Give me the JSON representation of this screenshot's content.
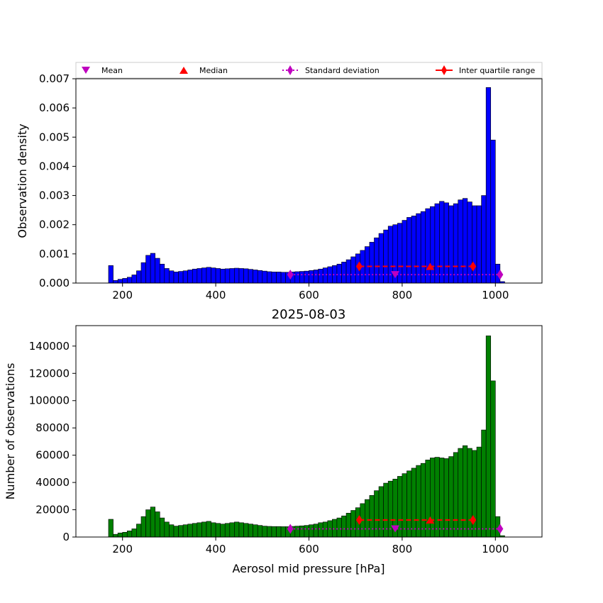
{
  "chart_data": [
    {
      "type": "bar",
      "xlabel": "",
      "ylabel": "Observation density",
      "xlim": [
        100,
        1100
      ],
      "ylim": [
        0,
        0.007
      ],
      "xticks": [
        200,
        400,
        600,
        800,
        1000
      ],
      "yticks": [
        "0.000",
        "0.001",
        "0.002",
        "0.003",
        "0.004",
        "0.005",
        "0.006",
        "0.007"
      ],
      "bar_color": "#0000ff",
      "bin_start": 170,
      "bin_width": 10,
      "values": [
        0.0006,
        9e-05,
        0.00013,
        0.00016,
        0.0002,
        0.00028,
        0.00042,
        0.0007,
        0.00095,
        0.00102,
        0.00085,
        0.00065,
        0.0005,
        0.00042,
        0.00038,
        0.0004,
        0.00042,
        0.00045,
        0.00048,
        0.0005,
        0.00052,
        0.00054,
        0.00052,
        0.0005,
        0.00048,
        0.00049,
        0.0005,
        0.00051,
        0.0005,
        0.00049,
        0.00047,
        0.00045,
        0.00043,
        0.00041,
        0.00039,
        0.00038,
        0.00038,
        0.00037,
        0.00037,
        0.00038,
        0.00039,
        0.0004,
        0.00041,
        0.00043,
        0.00045,
        0.00048,
        0.00052,
        0.00056,
        0.0006,
        0.00065,
        0.00072,
        0.0008,
        0.0009,
        0.001,
        0.00112,
        0.00125,
        0.0014,
        0.00155,
        0.0017,
        0.00182,
        0.00195,
        0.002,
        0.00205,
        0.00215,
        0.00225,
        0.0023,
        0.00238,
        0.00245,
        0.00255,
        0.00262,
        0.00272,
        0.0028,
        0.00275,
        0.00265,
        0.00272,
        0.00285,
        0.0029,
        0.00278,
        0.00265,
        0.00265,
        0.003,
        0.0067,
        0.0049,
        0.00065,
        5e-05
      ],
      "stats": {
        "mean": 785,
        "median": 860,
        "std_range": [
          560,
          1010
        ],
        "iqr_range": [
          708,
          952
        ]
      },
      "stats_y": {
        "mean": 0.00029,
        "median": 0.00057,
        "std": 0.00029,
        "iqr": 0.00057
      }
    },
    {
      "type": "bar",
      "title": "2025-08-03",
      "xlabel": "Aerosol mid pressure [hPa]",
      "ylabel": "Number of observations",
      "xlim": [
        100,
        1100
      ],
      "ylim": [
        0,
        155000
      ],
      "xticks": [
        200,
        400,
        600,
        800,
        1000
      ],
      "yticks": [
        "0",
        "20000",
        "40000",
        "60000",
        "80000",
        "100000",
        "120000",
        "140000"
      ],
      "bar_color": "#008000",
      "bin_start": 170,
      "bin_width": 10,
      "values": [
        13000,
        2000,
        3000,
        3500,
        4500,
        6000,
        9500,
        15000,
        20000,
        22000,
        18500,
        14000,
        11000,
        9000,
        8000,
        8500,
        9000,
        9500,
        10000,
        10500,
        11000,
        11500,
        10500,
        10000,
        9500,
        10000,
        10500,
        11000,
        10500,
        10000,
        9500,
        9000,
        8500,
        8000,
        7800,
        7700,
        7700,
        7600,
        7600,
        7800,
        8000,
        8200,
        8500,
        9000,
        9500,
        10500,
        11000,
        12000,
        13000,
        14000,
        15500,
        17500,
        19500,
        21500,
        24500,
        27500,
        30500,
        34000,
        37000,
        39500,
        41000,
        42500,
        44500,
        46500,
        48500,
        50500,
        52500,
        54000,
        56500,
        58000,
        58500,
        58000,
        57500,
        59000,
        62000,
        65000,
        67000,
        65000,
        63500,
        66000,
        78500,
        147500,
        114500,
        15000,
        1000
      ],
      "stats": {
        "mean": 785,
        "median": 860,
        "std_range": [
          560,
          1010
        ],
        "iqr_range": [
          708,
          952
        ]
      },
      "stats_y": {
        "mean": 6000,
        "median": 12500,
        "std": 6000,
        "iqr": 12500
      }
    }
  ],
  "legend": {
    "placement": "top",
    "entries": [
      {
        "label": "Mean",
        "marker": "triangle-down",
        "color": "#bf00bf"
      },
      {
        "label": "Median",
        "marker": "triangle-up",
        "color": "#ff0000"
      },
      {
        "label": "Standard deviation",
        "marker": "diamond-dotted",
        "color": "#bf00bf"
      },
      {
        "label": "Inter quartile range",
        "marker": "diamond-solid",
        "color": "#ff0000"
      }
    ]
  }
}
